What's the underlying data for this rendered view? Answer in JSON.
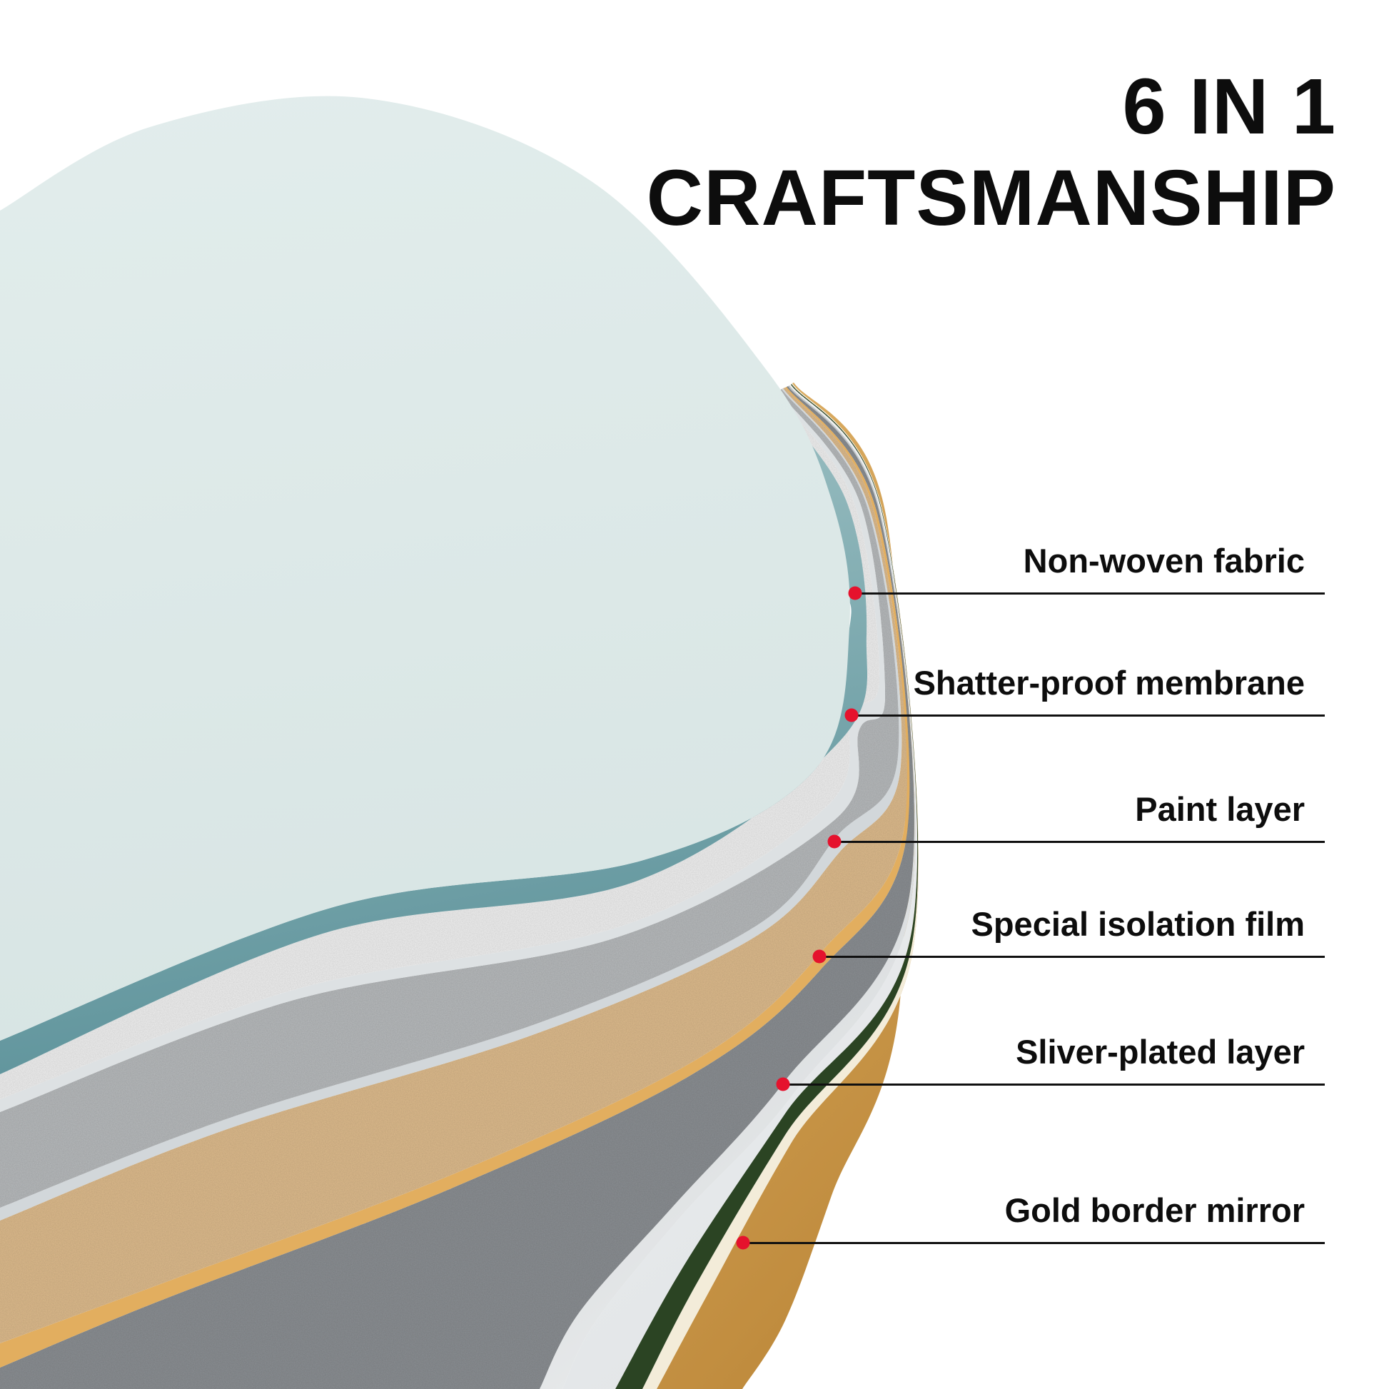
{
  "title": {
    "line1": "6 IN 1",
    "line2": "CRAFTSMANSHIP"
  },
  "callouts": [
    {
      "text": "Non-woven fabric"
    },
    {
      "text": "Shatter-proof membrane"
    },
    {
      "text": "Paint layer"
    },
    {
      "text": "Special isolation film"
    },
    {
      "text": "Sliver-plated layer"
    },
    {
      "text": "Gold border mirror"
    }
  ],
  "colors": {
    "background": "#ffffff",
    "text": "#0d0d0d",
    "leader_line": "#101010",
    "dot": "#e5122d",
    "glass_top": "#dde9e8",
    "glass_rim_teal_light": "#a9c9cb",
    "glass_rim_teal_dark": "#5e939b",
    "white_speckle": "#efefef",
    "divider_light": "#dde1e3",
    "gray_speckle": "#b6b9bb",
    "divider_mid": "#d2d7da",
    "tan_speckle": "#dcba8c",
    "amber_band": "#e2ae5f",
    "dark_gray_speckle": "#8a8e92",
    "divider_silver_light": "#e9ebec",
    "divider_silver_dark": "#b3b9bd",
    "white_band_light": "#f1f2f3",
    "white_band_dark": "#e3e6e8",
    "green_band": "#2b4423",
    "gold_light_line": "#f3ecd9",
    "gold_top": "#dfb066",
    "gold_bottom": "#c08c3e"
  },
  "layers": [
    {
      "name": "gold-border",
      "label": "Gold border mirror"
    },
    {
      "name": "gold-light-line",
      "label": "Gold border mirror highlight"
    },
    {
      "name": "green-accent",
      "label": "Gold border mirror green trim"
    },
    {
      "name": "white-band",
      "label": "Mirror body side"
    },
    {
      "name": "silver-divider",
      "label": "Sliver-plated divider"
    },
    {
      "name": "dark-gray-speckle",
      "label": "Sliver-plated layer"
    },
    {
      "name": "amber-band",
      "label": "Special isolation film edge"
    },
    {
      "name": "tan-speckle",
      "label": "Special isolation film"
    },
    {
      "name": "mid-divider",
      "label": "Paint layer divider"
    },
    {
      "name": "gray-speckle",
      "label": "Paint layer"
    },
    {
      "name": "light-divider",
      "label": "Shatter-proof divider"
    },
    {
      "name": "white-speckle",
      "label": "Shatter-proof membrane"
    },
    {
      "name": "teal-rim",
      "label": "Non-woven fabric rim"
    },
    {
      "name": "glass-top",
      "label": "Non-woven fabric top"
    }
  ]
}
